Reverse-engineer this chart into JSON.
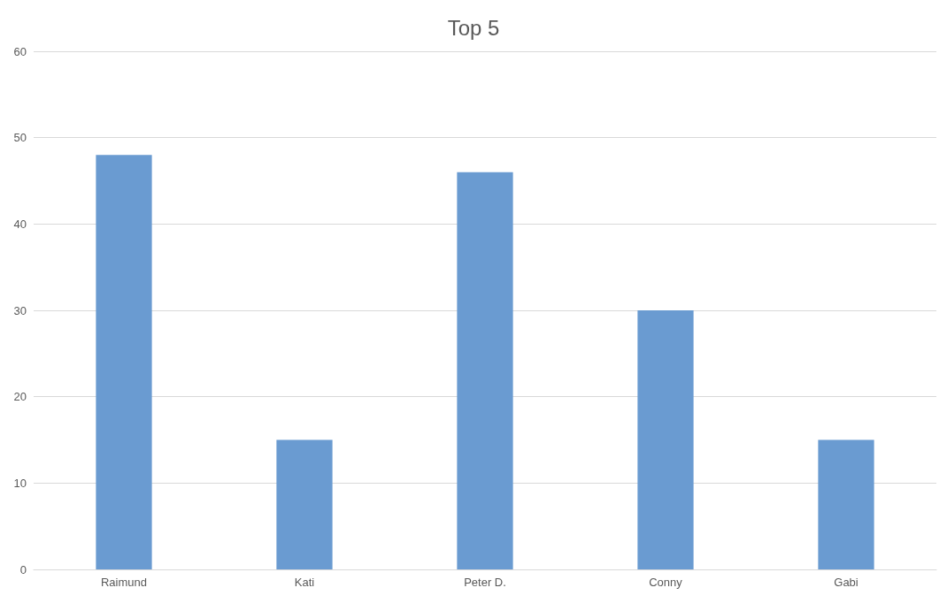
{
  "chart_data": {
    "type": "bar",
    "title": "Top 5",
    "categories": [
      "Raimund",
      "Kati",
      "Peter D.",
      "Conny",
      "Gabi"
    ],
    "values": [
      48,
      15,
      46,
      30,
      15
    ],
    "color": "#6a9bd1",
    "ylim": [
      0,
      60
    ],
    "yticks": [
      0,
      10,
      20,
      30,
      40,
      50,
      60
    ],
    "grid": "y"
  }
}
